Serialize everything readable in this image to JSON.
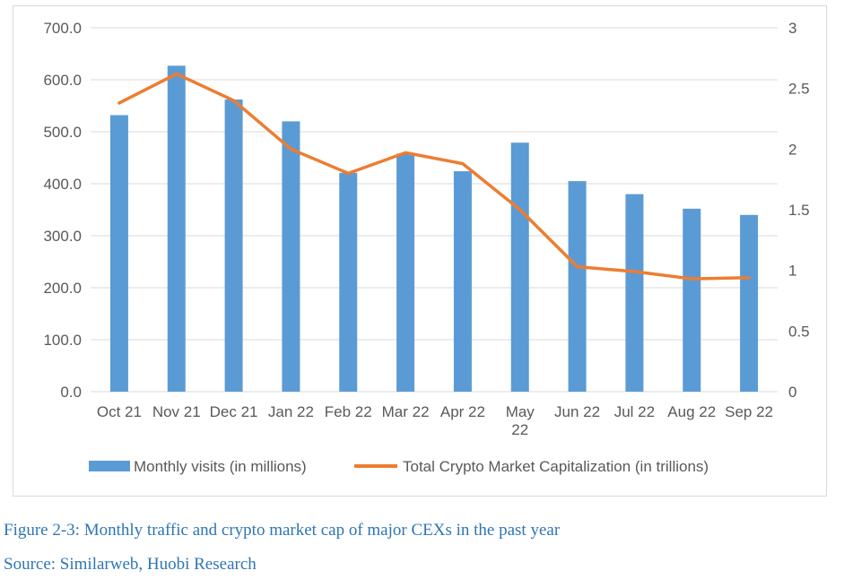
{
  "chart_data": {
    "type": "bar+line",
    "categories": [
      "Oct 21",
      "Nov 21",
      "Dec 21",
      "Jan 22",
      "Feb 22",
      "Mar 22",
      "Apr 22",
      "May 22",
      "Jun 22",
      "Jul 22",
      "Aug 22",
      "Sep 22"
    ],
    "category_lines": [
      [
        "Oct 21"
      ],
      [
        "Nov 21"
      ],
      [
        "Dec 21"
      ],
      [
        "Jan 22"
      ],
      [
        "Feb 22"
      ],
      [
        "Mar 22"
      ],
      [
        "Apr 22"
      ],
      [
        "May",
        "22"
      ],
      [
        "Jun 22"
      ],
      [
        "Jul 22"
      ],
      [
        "Aug 22"
      ],
      [
        "Sep 22"
      ]
    ],
    "series": [
      {
        "name": "Monthly visits (in millions)",
        "type": "bar",
        "axis": "left",
        "color": "#5b9bd5",
        "values": [
          532,
          627,
          562,
          520,
          421,
          458,
          424,
          479,
          405,
          380,
          352,
          340
        ]
      },
      {
        "name": "Total Crypto Market Capitalization (in trillions)",
        "type": "line",
        "axis": "right",
        "color": "#ed7d31",
        "values": [
          2.38,
          2.62,
          2.4,
          2.0,
          1.8,
          1.97,
          1.88,
          1.5,
          1.03,
          0.99,
          0.93,
          0.94
        ]
      }
    ],
    "y_left": {
      "min": 0,
      "max": 700,
      "ticks": [
        "0.0",
        "100.0",
        "200.0",
        "300.0",
        "400.0",
        "500.0",
        "600.0",
        "700.0"
      ]
    },
    "y_right": {
      "min": 0,
      "max": 3,
      "ticks": [
        "0",
        "0.5",
        "1",
        "1.5",
        "2",
        "2.5",
        "3"
      ]
    },
    "grid": true,
    "legend_position": "bottom"
  },
  "caption": {
    "title": "Figure 2-3: Monthly traffic and crypto market cap of major CEXs in the past year",
    "source": "Source: Similarweb, Huobi Research"
  }
}
